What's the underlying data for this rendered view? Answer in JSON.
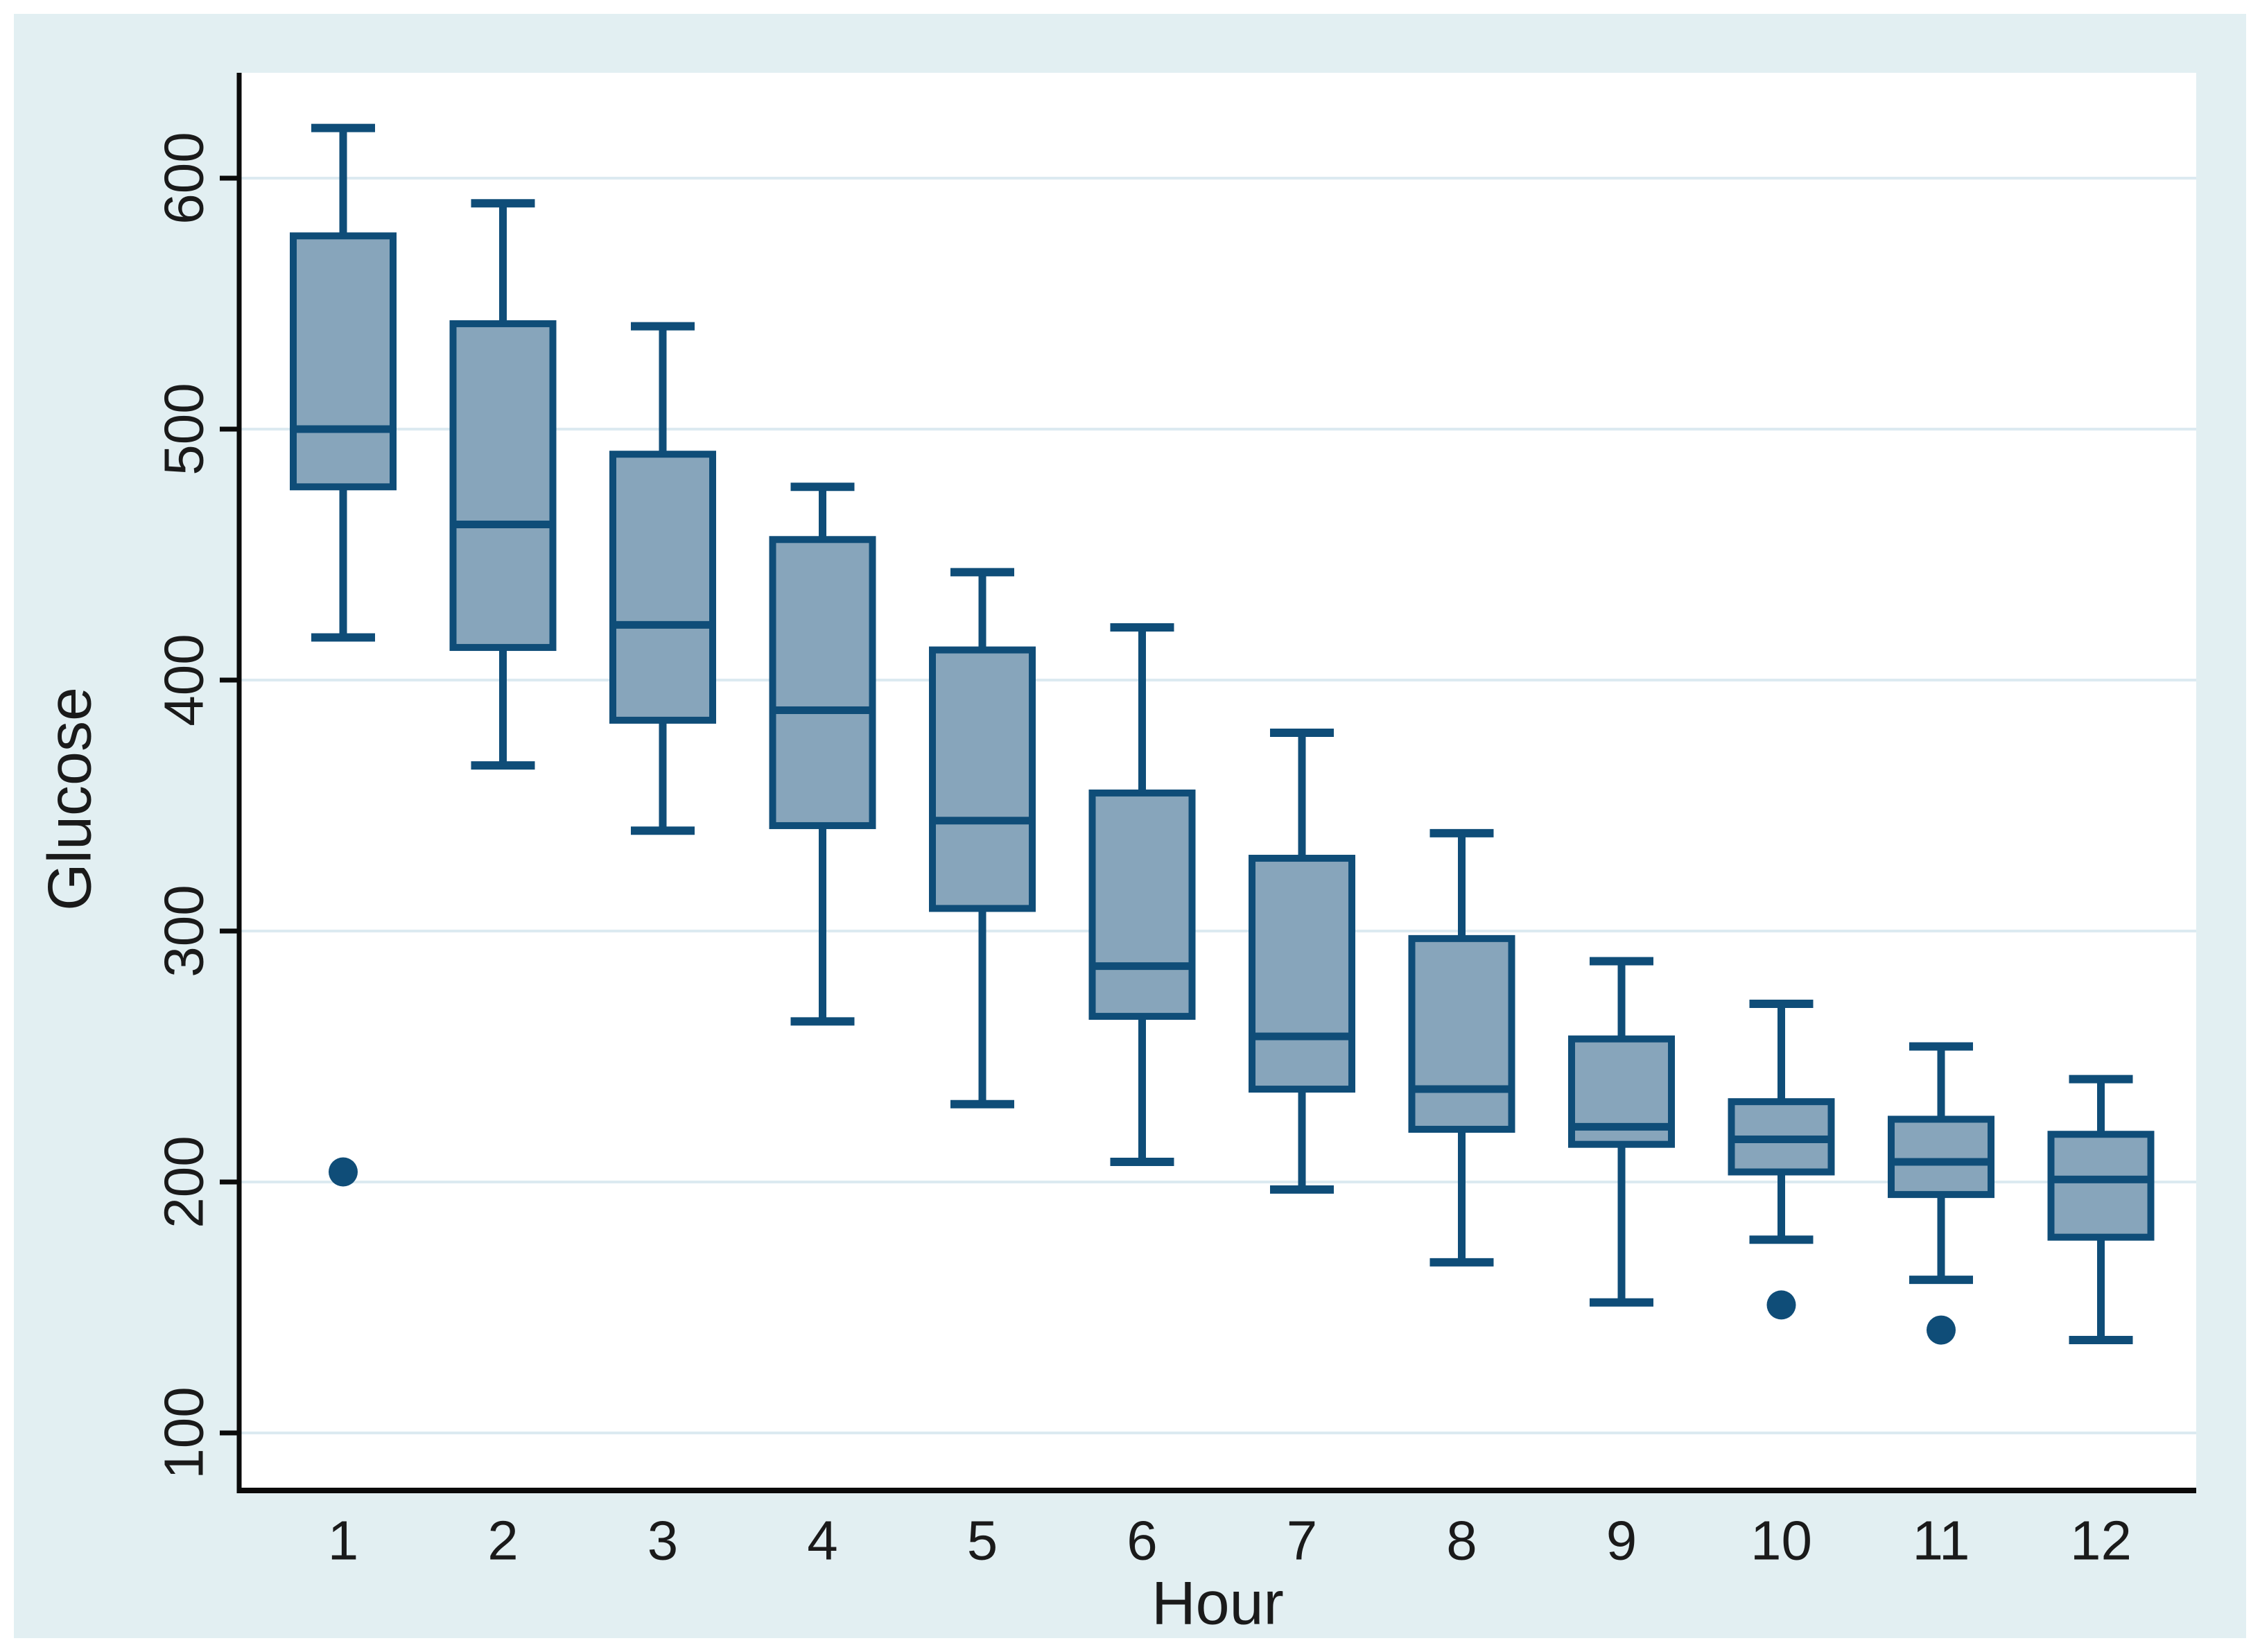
{
  "figure": {
    "x_axis_title": "Hour",
    "y_axis_title": "Glucose"
  },
  "chart_data": {
    "type": "box",
    "title": "",
    "xlabel": "Hour",
    "ylabel": "Glucose",
    "categories": [
      "1",
      "2",
      "3",
      "4",
      "5",
      "6",
      "7",
      "8",
      "9",
      "10",
      "11",
      "12"
    ],
    "y_ticks": [
      600,
      500,
      400,
      300,
      200,
      100
    ],
    "ylim": [
      77,
      642
    ],
    "grid": "horizontal gridlines at each y tick",
    "legend": "none",
    "series": [
      {
        "hour": "1",
        "whisker_low": 417,
        "q1": 477,
        "median": 500,
        "q3": 577,
        "whisker_high": 620,
        "outliers": [
          204
        ]
      },
      {
        "hour": "2",
        "whisker_low": 366,
        "q1": 413,
        "median": 462,
        "q3": 542,
        "whisker_high": 590,
        "outliers": []
      },
      {
        "hour": "3",
        "whisker_low": 340,
        "q1": 384,
        "median": 422,
        "q3": 490,
        "whisker_high": 541,
        "outliers": []
      },
      {
        "hour": "4",
        "whisker_low": 264,
        "q1": 342,
        "median": 388,
        "q3": 456,
        "whisker_high": 477,
        "outliers": []
      },
      {
        "hour": "5",
        "whisker_low": 231,
        "q1": 309,
        "median": 344,
        "q3": 412,
        "whisker_high": 443,
        "outliers": []
      },
      {
        "hour": "6",
        "whisker_low": 208,
        "q1": 266,
        "median": 286,
        "q3": 355,
        "whisker_high": 421,
        "outliers": []
      },
      {
        "hour": "7",
        "whisker_low": 197,
        "q1": 237,
        "median": 258,
        "q3": 329,
        "whisker_high": 379,
        "outliers": []
      },
      {
        "hour": "8",
        "whisker_low": 168,
        "q1": 221,
        "median": 237,
        "q3": 297,
        "whisker_high": 339,
        "outliers": []
      },
      {
        "hour": "9",
        "whisker_low": 152,
        "q1": 215,
        "median": 222,
        "q3": 257,
        "whisker_high": 288,
        "outliers": []
      },
      {
        "hour": "10",
        "whisker_low": 177,
        "q1": 204,
        "median": 217,
        "q3": 232,
        "whisker_high": 271,
        "outliers": [
          151
        ]
      },
      {
        "hour": "11",
        "whisker_low": 161,
        "q1": 195,
        "median": 208,
        "q3": 225,
        "whisker_high": 254,
        "outliers": [
          141
        ]
      },
      {
        "hour": "12",
        "whisker_low": 137,
        "q1": 178,
        "median": 201,
        "q3": 219,
        "whisker_high": 241,
        "outliers": []
      }
    ],
    "colors": {
      "box_fill": "#87A5BB",
      "box_border": "#0F4D78",
      "outlier_dot": "#0F4D78",
      "gridline": "#DCEAF1",
      "plot_background": "#FFFFFF",
      "canvas_background": "#E2EFF2",
      "axis_line": "#0A0A0A",
      "text": "#1A1A1A"
    }
  }
}
